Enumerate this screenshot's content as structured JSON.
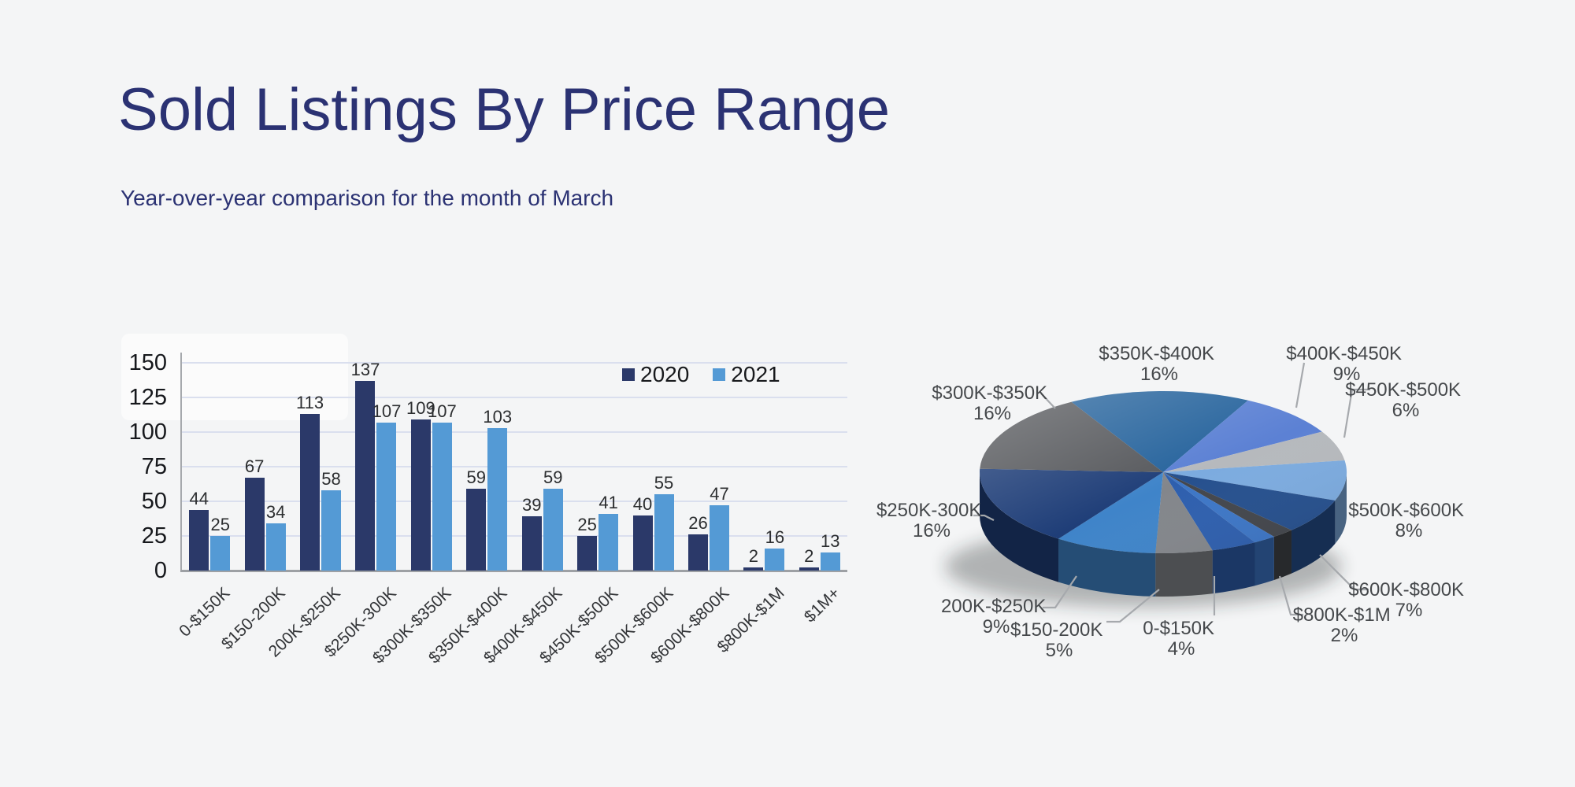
{
  "page": {
    "background": "#f4f5f6"
  },
  "header": {
    "title": "Sold Listings By Price Range",
    "subtitle": "Year-over-year comparison for the month of March",
    "accent_color": "#2b3273"
  },
  "chart_data": [
    {
      "type": "bar",
      "categories": [
        "0-$150K",
        "$150-200K",
        "200K-$250K",
        "$250K-300K",
        "$300K-$350K",
        "$350K-$400K",
        "$400K-$450K",
        "$450K-$500K",
        "$500K-$600K",
        "$600K-$800K",
        "$800K-$1M",
        "$1M+"
      ],
      "series": [
        {
          "name": "2020",
          "color": "#2b3969",
          "values": [
            44,
            67,
            113,
            137,
            109,
            59,
            39,
            25,
            40,
            26,
            2,
            2
          ]
        },
        {
          "name": "2021",
          "color": "#549ad5",
          "values": [
            25,
            34,
            58,
            107,
            107,
            103,
            59,
            41,
            55,
            47,
            16,
            13
          ]
        }
      ],
      "ylim": [
        0,
        150
      ],
      "yticks": [
        0,
        25,
        50,
        75,
        100,
        125,
        150
      ],
      "grid": true,
      "legend_position": "top-right",
      "gridline_color": "#dadfee",
      "value_label_color": "#2c2e30"
    },
    {
      "type": "pie",
      "style": "3d",
      "label_color": "#45484b",
      "leader_color": "#a6a9ad",
      "slices": [
        {
          "label": "$350K-$400K",
          "pct": 16,
          "color": "#27649d",
          "labeled": true
        },
        {
          "label": "$400K-$450K",
          "pct": 9,
          "color": "#5c81d4",
          "labeled": true
        },
        {
          "label": "$450K-$500K",
          "pct": 6,
          "color": "#b6b9bd",
          "labeled": true
        },
        {
          "label": "$500K-$600K",
          "pct": 8,
          "color": "#7cabdf",
          "labeled": true
        },
        {
          "label": "$600K-$800K",
          "pct": 7,
          "color": "#26508e",
          "labeled": true
        },
        {
          "label": "$800K-$1M",
          "pct": 2,
          "color": "#43464c",
          "labeled": true
        },
        {
          "label": "$1M+",
          "pct": 2,
          "color": "#3d76c6",
          "labeled": false
        },
        {
          "label": "0-$150K",
          "pct": 4,
          "color": "#2e5fae",
          "labeled": true
        },
        {
          "label": "$150-200K",
          "pct": 5,
          "color": "#83868b",
          "labeled": true
        },
        {
          "label": "200K-$250K",
          "pct": 9,
          "color": "#3f84c9",
          "labeled": true
        },
        {
          "label": "$250K-300K",
          "pct": 16,
          "color": "#1f3e78",
          "labeled": true
        },
        {
          "label": "$300K-$350K",
          "pct": 16,
          "color": "#57595d",
          "labeled": true
        }
      ]
    }
  ]
}
